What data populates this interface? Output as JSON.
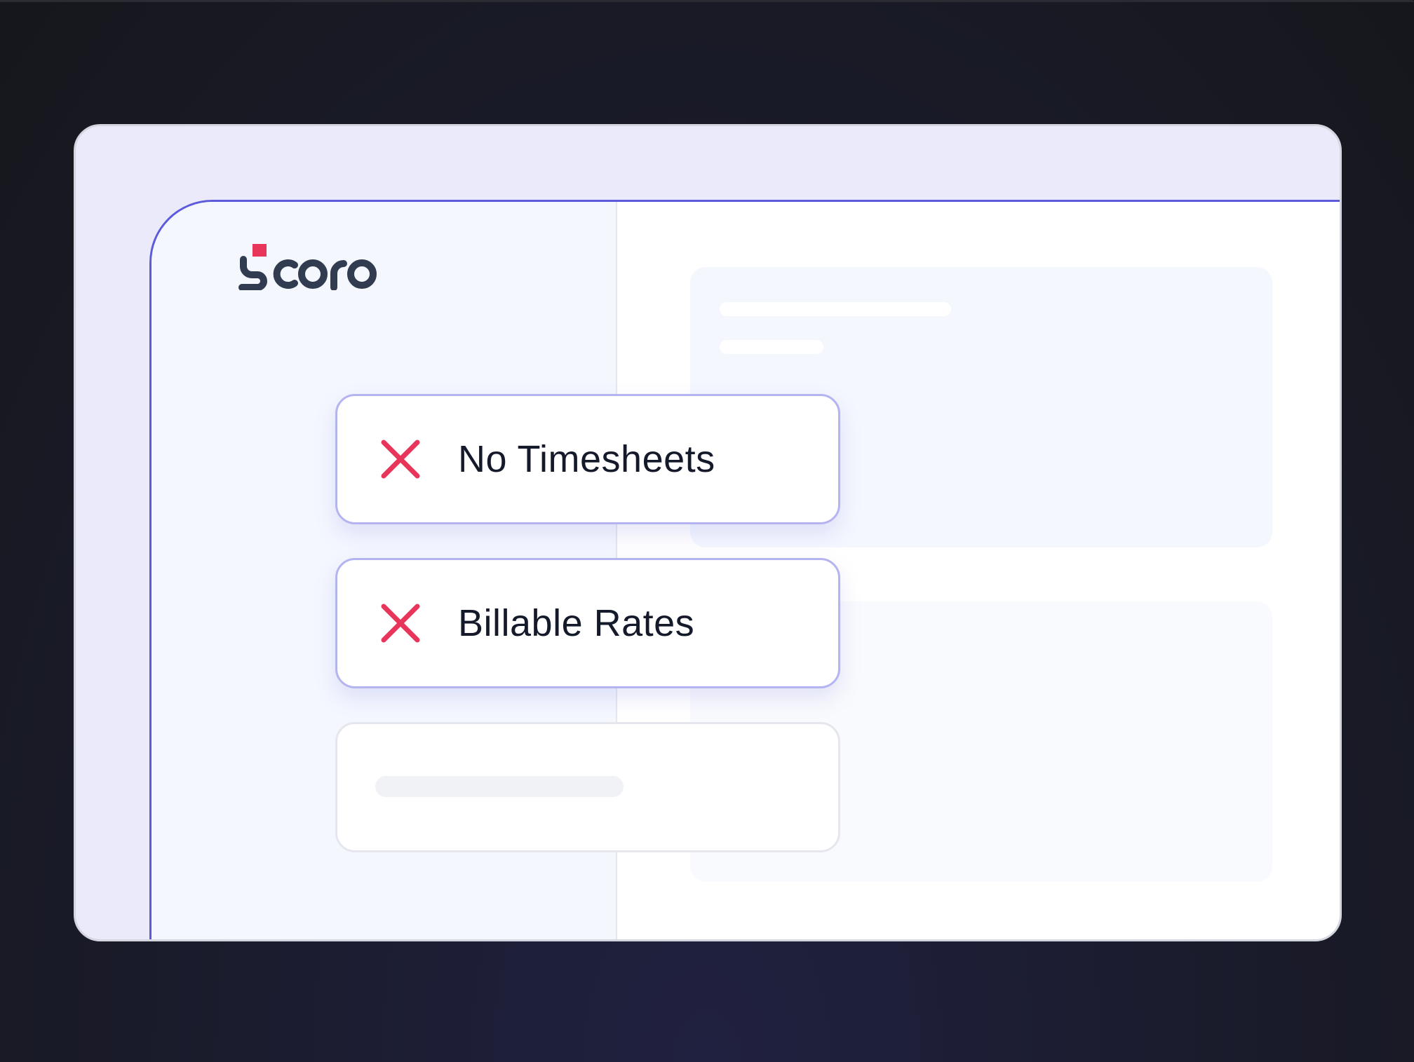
{
  "brand": {
    "logo_text": "Scoro",
    "accent_color": "#e8365b",
    "text_color": "#323c50"
  },
  "cards": [
    {
      "label": "No Timesheets",
      "icon": "x-icon",
      "icon_color": "#e8365b"
    },
    {
      "label": "Billable Rates",
      "icon": "x-icon",
      "icon_color": "#e8365b"
    }
  ],
  "colors": {
    "border_accent": "#5b5bdc",
    "card_border": "#b4b4f0"
  }
}
